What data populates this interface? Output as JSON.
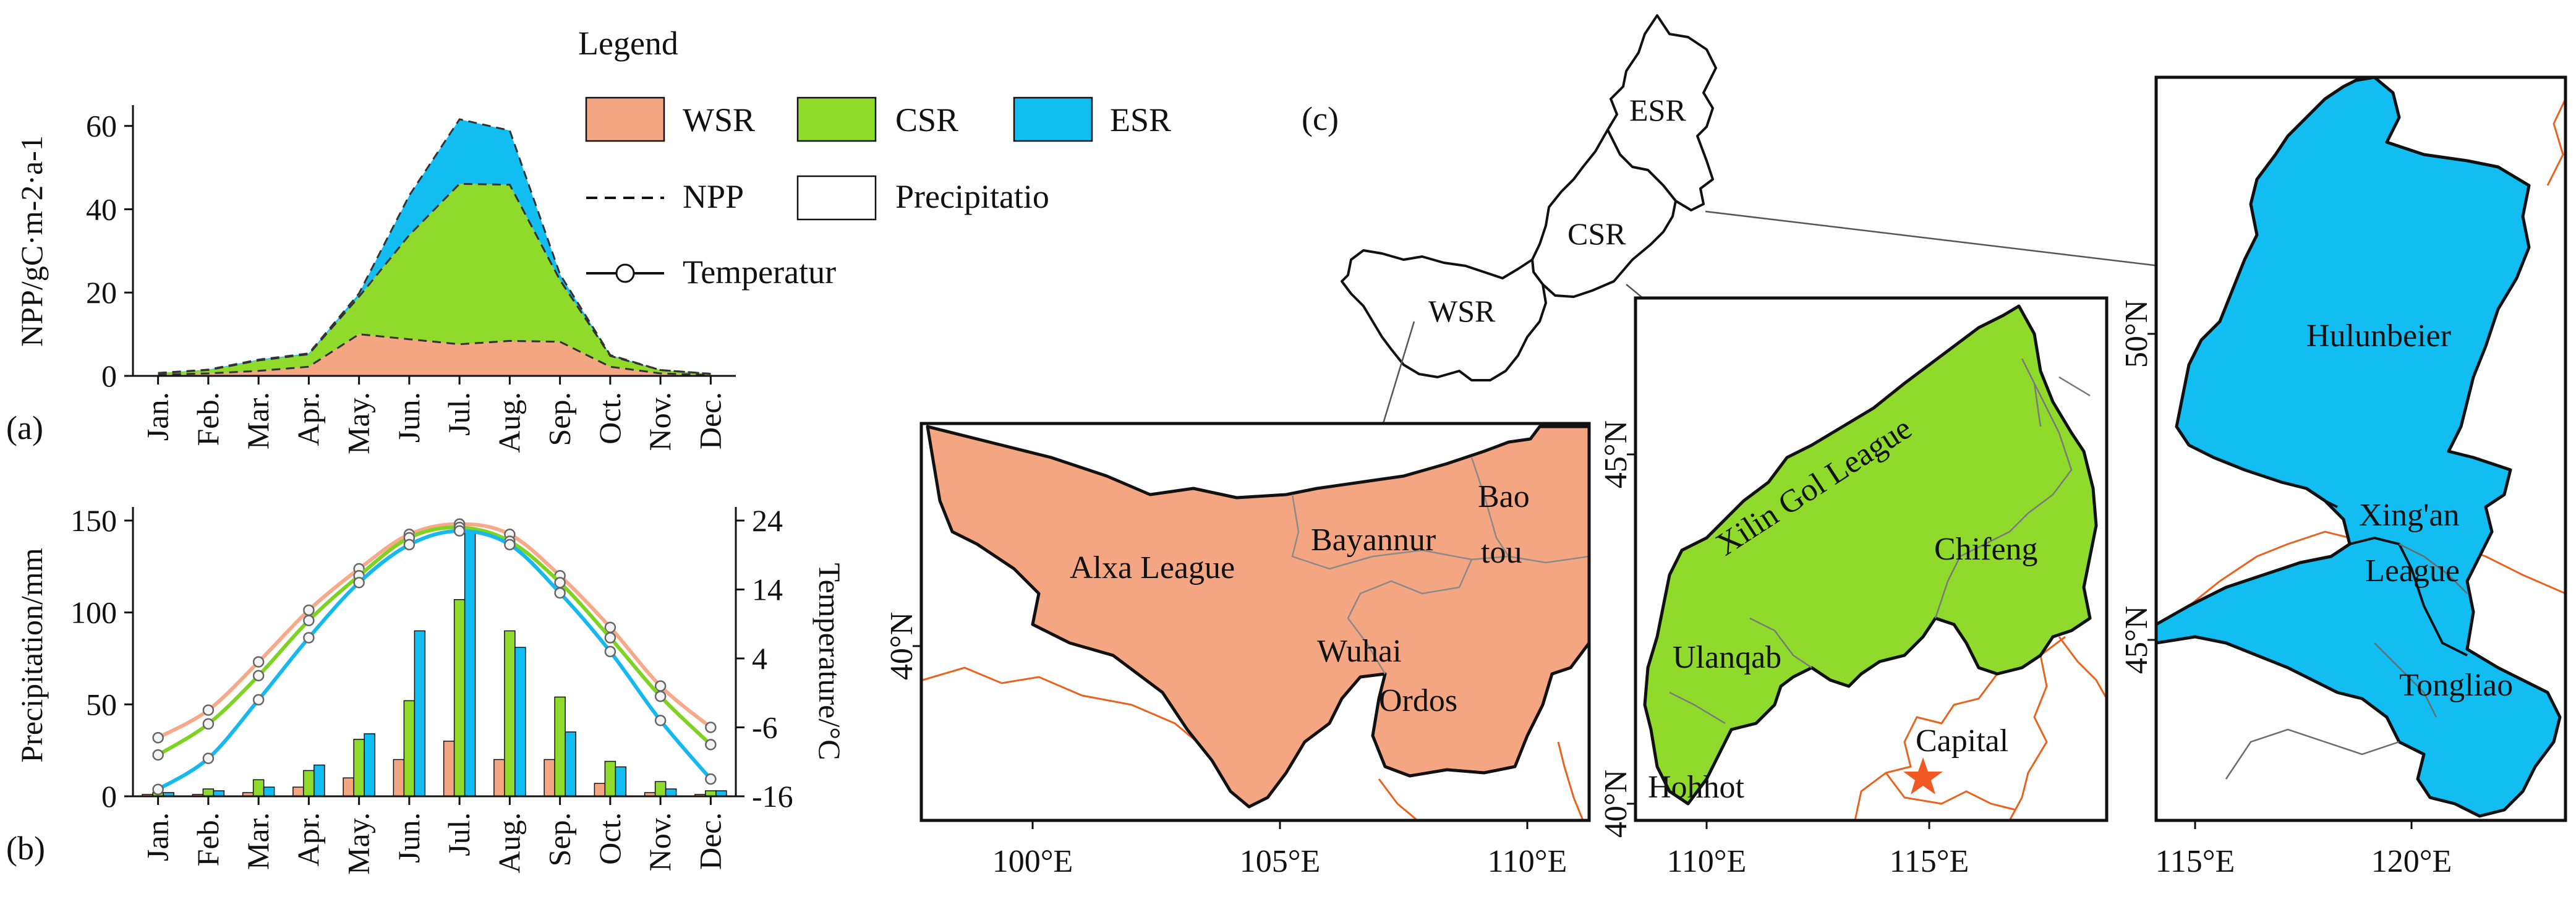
{
  "colors": {
    "wsr": "#F4A582",
    "csr": "#8FDA2A",
    "esr": "#12BDF2",
    "wsr_line": "#F7A98A",
    "csr_line": "#7ED321",
    "esr_line": "#16B8F0",
    "province_border": "#E8641E",
    "star": "#F05A22"
  },
  "months": [
    "Jan.",
    "Feb.",
    "Mar.",
    "Apr.",
    "May.",
    "Jun.",
    "Jul.",
    "Aug.",
    "Sep.",
    "Oct.",
    "Nov.",
    "Dec."
  ],
  "legend": {
    "title": "Legend",
    "wsr": "WSR",
    "csr": "CSR",
    "esr": "ESR",
    "npp": "NPP",
    "precip": "Precipitatio",
    "temp": "Temperatur"
  },
  "panel_labels": {
    "a": "(a)",
    "b": "(b)",
    "c": "(c)"
  },
  "chart_data": [
    {
      "type": "area",
      "panel": "(a)",
      "ylabel": "NPP/gC·m-2·a-1",
      "ylim": [
        0,
        65
      ],
      "yticks": [
        0,
        20,
        40,
        60
      ],
      "series": [
        {
          "name": "WSR",
          "values": [
            0.3,
            0.6,
            1.2,
            2.2,
            10.0,
            8.8,
            7.6,
            8.4,
            8.2,
            2.2,
            0.6,
            0.2
          ]
        },
        {
          "name": "CSR",
          "values": [
            0.4,
            0.8,
            2.5,
            3.0,
            9.0,
            25.0,
            38.5,
            37.5,
            14.8,
            2.6,
            0.8,
            0.3
          ]
        },
        {
          "name": "ESR",
          "values": [
            0.0,
            0.1,
            0.2,
            0.2,
            0.8,
            9.5,
            15.5,
            13.0,
            1.4,
            0.2,
            0.0,
            0.0
          ]
        }
      ]
    },
    {
      "type": "bar",
      "panel": "(b)",
      "ylabel": "Precipitation/mm",
      "ylim": [
        0,
        150
      ],
      "yticks": [
        0,
        50,
        100,
        150
      ],
      "y2label": "Temperature/°C",
      "y2lim": [
        -16,
        24
      ],
      "y2ticks": [
        -16,
        -6,
        4,
        14,
        24
      ],
      "series": [
        {
          "name": "WSR",
          "values": [
            1,
            1,
            2,
            5,
            10,
            20,
            30,
            20,
            20,
            7,
            2,
            1
          ]
        },
        {
          "name": "CSR",
          "values": [
            2,
            4,
            9,
            14,
            31,
            52,
            107,
            90,
            54,
            19,
            8,
            3
          ]
        },
        {
          "name": "ESR",
          "values": [
            2,
            3,
            5,
            17,
            34,
            90,
            146,
            81,
            35,
            16,
            4,
            3
          ]
        }
      ],
      "temperature": [
        {
          "name": "WSR",
          "values": [
            -7.5,
            -3.5,
            3.5,
            11.0,
            17.0,
            22.0,
            23.5,
            22.0,
            16.0,
            8.5,
            0.0,
            -6.0
          ]
        },
        {
          "name": "CSR",
          "values": [
            -10.0,
            -5.5,
            1.5,
            9.5,
            16.0,
            21.5,
            23.0,
            21.0,
            15.0,
            7.0,
            -1.5,
            -8.5
          ]
        },
        {
          "name": "ESR",
          "values": [
            -15.0,
            -10.5,
            -2.0,
            7.0,
            15.0,
            20.5,
            22.5,
            20.5,
            13.5,
            5.0,
            -5.0,
            -13.5
          ]
        }
      ]
    }
  ],
  "map": {
    "overview_labels": [
      "ESR",
      "CSR",
      "WSR"
    ],
    "wsr_panel": {
      "x_ticks": [
        "100°E",
        "105°E",
        "110°E"
      ],
      "y_ticks": [
        "40°N"
      ],
      "regions": [
        "Alxa League",
        "Bayannur",
        "Bao",
        "tou",
        "Wuhai",
        "Ordos"
      ]
    },
    "csr_panel": {
      "x_ticks": [
        "110°E",
        "115°E"
      ],
      "y_ticks": [
        "45°N",
        "40°N"
      ],
      "regions": [
        "Xilin Gol League",
        "Chifeng",
        "Ulanqab",
        "Hohhot"
      ],
      "capital": "Capital"
    },
    "esr_panel": {
      "x_ticks": [
        "115°E",
        "120°E"
      ],
      "y_ticks": [
        "50°N",
        "45°N"
      ],
      "regions": [
        "Hulunbeier",
        "Xing'an",
        "League",
        "Tongliao"
      ]
    }
  }
}
